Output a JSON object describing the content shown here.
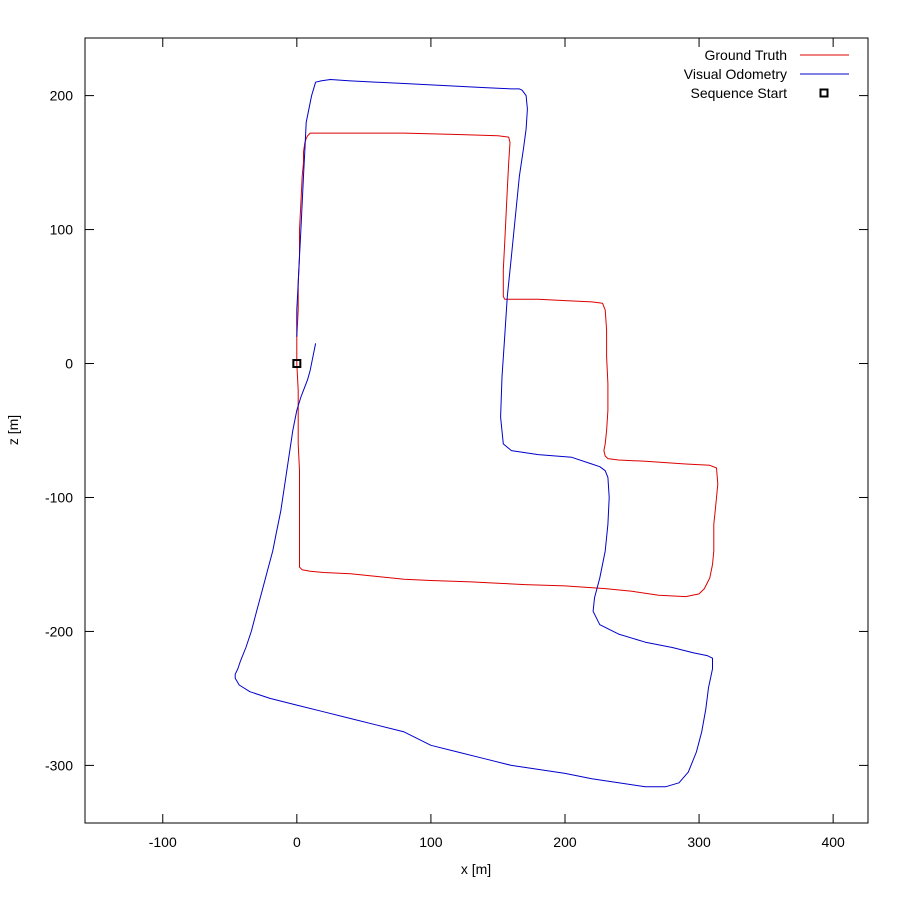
{
  "chart_data": {
    "type": "line",
    "title": "",
    "xlabel": "x [m]",
    "ylabel": "z [m]",
    "xlim": [
      -158,
      426
    ],
    "ylim": [
      -343,
      243
    ],
    "xticks": [
      -100,
      0,
      100,
      200,
      300,
      400
    ],
    "yticks": [
      -300,
      -200,
      -100,
      0,
      100,
      200
    ],
    "grid": false,
    "legend": {
      "position": "top-right"
    },
    "series": [
      {
        "name": "Ground Truth",
        "color": "#dd0000",
        "x": [
          0,
          0,
          1,
          1,
          2,
          2,
          3,
          4,
          5,
          5,
          6,
          7,
          8,
          9,
          10,
          20,
          40,
          80,
          120,
          150,
          158,
          159,
          158,
          157,
          156,
          155,
          154,
          154,
          154,
          155,
          158,
          165,
          180,
          200,
          220,
          228,
          230,
          231,
          231,
          232,
          232,
          231,
          230,
          229,
          230,
          232,
          240,
          260,
          290,
          308,
          313,
          314,
          313,
          312,
          311,
          311,
          310,
          308,
          304,
          300,
          290,
          270,
          250,
          230,
          200,
          170,
          150,
          130,
          100,
          80,
          60,
          40,
          20,
          10,
          4,
          2,
          2,
          2,
          2,
          2,
          1,
          1,
          1,
          0
        ],
        "y": [
          0,
          20,
          40,
          60,
          80,
          100,
          120,
          140,
          150,
          158,
          165,
          168,
          170,
          171,
          172,
          172,
          172,
          172,
          171,
          170,
          169,
          165,
          150,
          130,
          110,
          90,
          70,
          55,
          50,
          48,
          48,
          48,
          48,
          47,
          46,
          45,
          40,
          25,
          5,
          -15,
          -35,
          -50,
          -60,
          -65,
          -69,
          -71,
          -72,
          -73,
          -75,
          -76,
          -78,
          -90,
          -100,
          -110,
          -120,
          -140,
          -150,
          -160,
          -168,
          -172,
          -174,
          -173,
          -170,
          -168,
          -166,
          -165,
          -164,
          -163,
          -162,
          -161,
          -159,
          -157,
          -156,
          -155,
          -154,
          -152,
          -140,
          -120,
          -100,
          -80,
          -60,
          -40,
          -20,
          0
        ]
      },
      {
        "name": "Visual Odometry",
        "color": "#0000cc",
        "x": [
          14,
          12,
          10,
          8,
          5,
          3,
          0,
          -3,
          -6,
          -9,
          -12,
          -15,
          -18,
          -22,
          -26,
          -30,
          -34,
          -38,
          -42,
          -44,
          -46,
          -46,
          -43,
          -35,
          -20,
          0,
          20,
          40,
          60,
          80,
          100,
          120,
          140,
          160,
          180,
          200,
          220,
          240,
          260,
          275,
          285,
          292,
          298,
          302,
          305,
          307,
          310,
          310,
          306,
          296,
          280,
          260,
          240,
          226,
          221,
          222,
          226,
          230,
          232,
          233,
          232,
          230,
          226,
          220,
          205,
          180,
          160,
          154,
          152,
          153,
          155,
          157,
          160,
          163,
          166,
          169,
          171,
          172,
          171,
          168,
          166,
          160,
          140,
          120,
          100,
          80,
          60,
          40,
          25,
          18,
          14,
          11,
          9,
          7,
          6,
          5,
          4,
          3,
          2,
          1,
          0,
          0
        ],
        "y": [
          15,
          5,
          -5,
          -12,
          -20,
          -25,
          -35,
          -50,
          -70,
          -90,
          -110,
          -125,
          -140,
          -155,
          -170,
          -185,
          -200,
          -212,
          -222,
          -228,
          -232,
          -235,
          -240,
          -245,
          -250,
          -255,
          -260,
          -265,
          -270,
          -275,
          -285,
          -290,
          -295,
          -300,
          -303,
          -306,
          -310,
          -313,
          -316,
          -316,
          -313,
          -305,
          -290,
          -275,
          -258,
          -242,
          -228,
          -220,
          -218,
          -216,
          -212,
          -208,
          -202,
          -195,
          -185,
          -175,
          -160,
          -140,
          -120,
          -100,
          -85,
          -80,
          -77,
          -75,
          -70,
          -68,
          -65,
          -60,
          -40,
          -10,
          20,
          50,
          80,
          110,
          140,
          160,
          175,
          190,
          200,
          204,
          205,
          205,
          206,
          207,
          208,
          209,
          210,
          211,
          212,
          211,
          210,
          200,
          190,
          180,
          160,
          140,
          120,
          100,
          80,
          60,
          40,
          20
        ]
      },
      {
        "name": "Sequence Start",
        "color": "#000000",
        "marker": "square",
        "x": [
          0
        ],
        "y": [
          0
        ]
      }
    ]
  }
}
